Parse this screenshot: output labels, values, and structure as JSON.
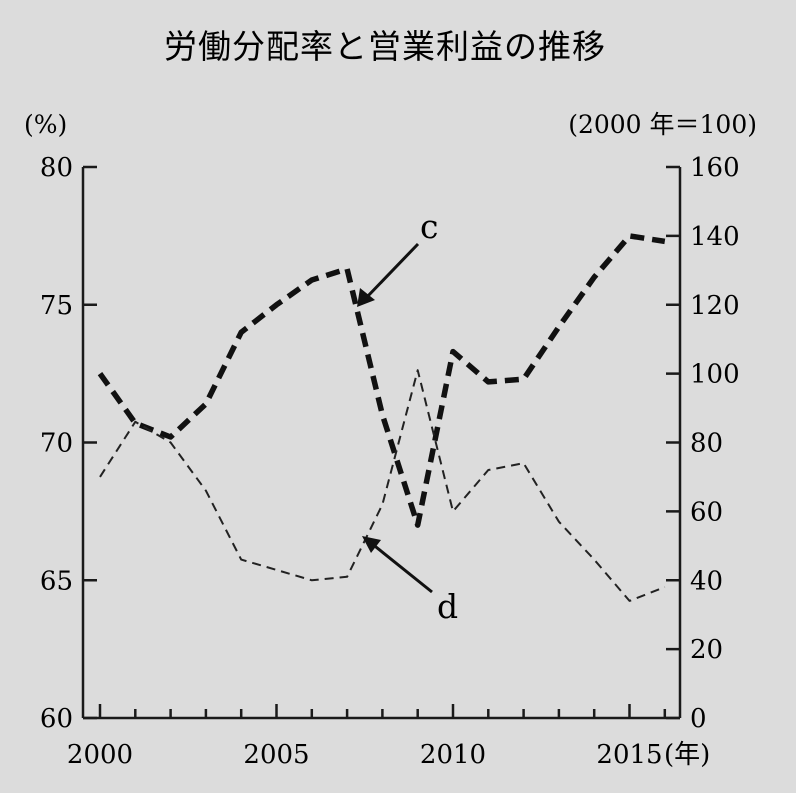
{
  "chart_data": {
    "type": "line",
    "title": "労働分配率と営業利益の推移",
    "left_axis": {
      "unit_label": "(%)",
      "ylim": [
        60,
        80
      ],
      "ticks": [
        "80",
        "75",
        "70",
        "65",
        "60"
      ]
    },
    "right_axis": {
      "unit_label": "(2000 年＝100)",
      "ylim": [
        0,
        160
      ],
      "ticks": [
        "160",
        "140",
        "120",
        "100",
        "80",
        "60",
        "40",
        "20",
        "0"
      ]
    },
    "x_axis": {
      "ticks": [
        "2000",
        "2005",
        "2010",
        "2015"
      ],
      "unit_label": "(年)",
      "xlim": [
        2000,
        2016
      ]
    },
    "series": [
      {
        "name": "c",
        "axis": "left",
        "style": "thick-dashed",
        "x": [
          2000,
          2001,
          2002,
          2003,
          2004,
          2005,
          2006,
          2007,
          2008,
          2009,
          2010,
          2011,
          2012,
          2013,
          2014,
          2015,
          2016
        ],
        "y": [
          72.5,
          70.7,
          70.2,
          71.4,
          74.0,
          75.0,
          75.9,
          76.3,
          71.0,
          67.0,
          73.3,
          72.2,
          72.3,
          74.2,
          76.0,
          77.5,
          77.3
        ]
      },
      {
        "name": "d",
        "axis": "right",
        "style": "thin-dashed",
        "x": [
          2000,
          2001,
          2002,
          2003,
          2004,
          2005,
          2006,
          2007,
          2008,
          2009,
          2010,
          2011,
          2012,
          2013,
          2014,
          2015,
          2016
        ],
        "y": [
          70,
          86,
          80,
          66,
          46,
          43,
          40,
          41,
          62,
          101,
          60,
          72,
          74,
          57,
          46,
          34,
          38
        ]
      }
    ],
    "annotations": [
      {
        "label": "c",
        "series": "c"
      },
      {
        "label": "d",
        "series": "d"
      }
    ],
    "grid": false,
    "legend": "none"
  }
}
